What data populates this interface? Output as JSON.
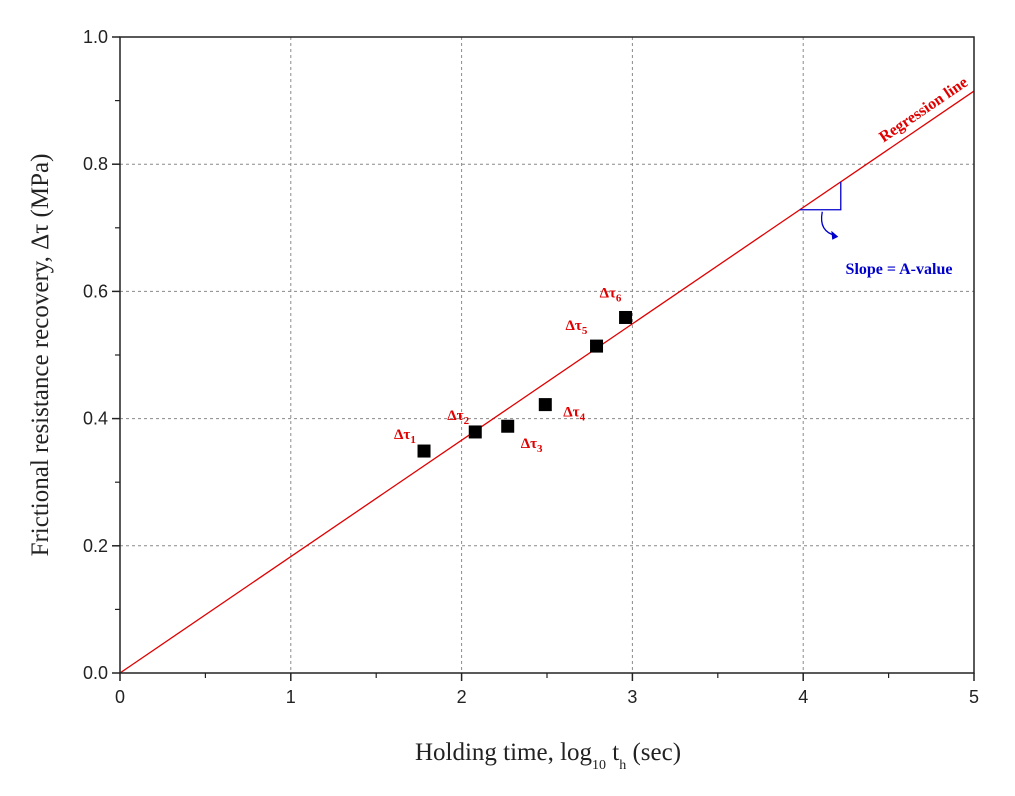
{
  "chart_data": {
    "type": "scatter",
    "xlabel": {
      "main": "Holding time, log",
      "sub1": "10",
      "mid": " t",
      "sub2": "h",
      "tail": " (sec)"
    },
    "ylabel": "Frictional resistance recovery, Δτ (MPa)",
    "xlim": [
      0,
      5
    ],
    "ylim": [
      0,
      1.0
    ],
    "x_ticks": [
      "0",
      "1",
      "2",
      "3",
      "4",
      "5"
    ],
    "y_ticks": [
      "0.0",
      "0.2",
      "0.4",
      "0.6",
      "0.8",
      "1.0"
    ],
    "grid": true,
    "points": [
      {
        "x": 1.78,
        "y": 0.349,
        "symbol": "Δτ",
        "sub": "1"
      },
      {
        "x": 2.08,
        "y": 0.379,
        "symbol": "Δτ",
        "sub": "2"
      },
      {
        "x": 2.27,
        "y": 0.388,
        "symbol": "Δτ",
        "sub": "3"
      },
      {
        "x": 2.49,
        "y": 0.422,
        "symbol": "Δτ",
        "sub": "4"
      },
      {
        "x": 2.79,
        "y": 0.514,
        "symbol": "Δτ",
        "sub": "5"
      },
      {
        "x": 2.96,
        "y": 0.559,
        "symbol": "Δτ",
        "sub": "6"
      }
    ],
    "regression": {
      "intercept": 0.0,
      "slope": 0.183,
      "x_start": 0,
      "x_end": 5,
      "label": "Regression line"
    },
    "slope_annotation": {
      "text": "Slope = A-value"
    },
    "colors": {
      "points": "#000000",
      "regression": "#e00000",
      "slope_annotation": "#0000cc"
    }
  }
}
